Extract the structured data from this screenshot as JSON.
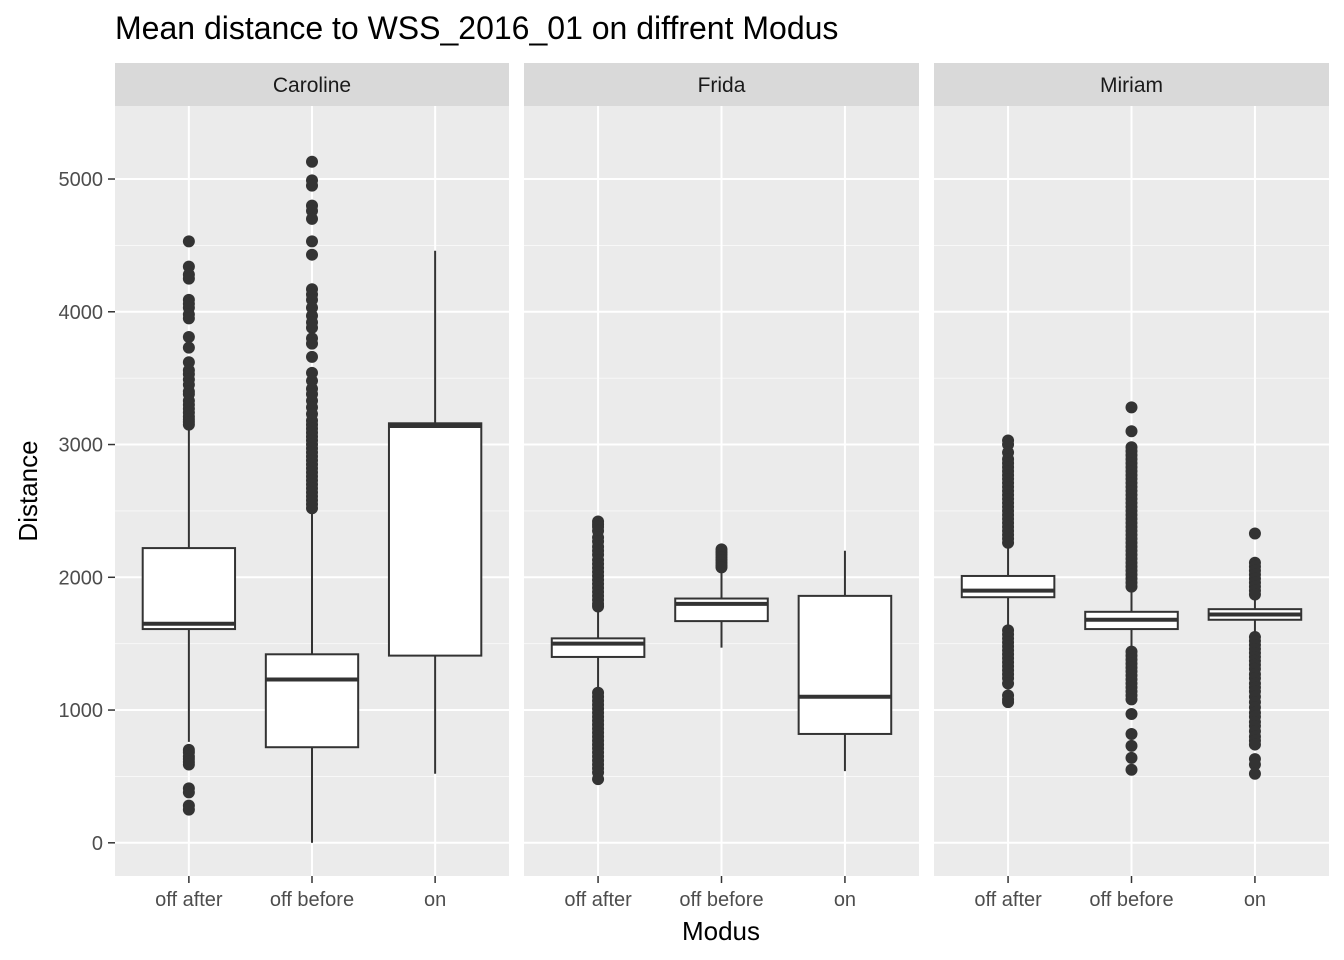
{
  "chart_data": {
    "type": "boxplot",
    "title": "Mean distance to WSS_2016_01 on diffrent Modus",
    "xlabel": "Modus",
    "ylabel": "Distance",
    "ylim": [
      -250,
      5550
    ],
    "yticks": [
      0,
      1000,
      2000,
      3000,
      4000,
      5000
    ],
    "categories": [
      "off after",
      "off before",
      "on"
    ],
    "facets": [
      {
        "name": "Caroline",
        "boxes": [
          {
            "category": "off after",
            "q1": 1610,
            "median": 1650,
            "q3": 2220,
            "whisker_low": 760,
            "whisker_high": 3110,
            "outliers": [
              4530,
              4340,
              4280,
              4250,
              4090,
              4060,
              4030,
              3980,
              3950,
              3810,
              3730,
              3620,
              3560,
              3530,
              3490,
              3450,
              3400,
              3380,
              3330,
              3300,
              3270,
              3240,
              3210,
              3190,
              3170,
              3150,
              700,
              680,
              650,
              630,
              610,
              590,
              410,
              380,
              280,
              250
            ]
          },
          {
            "category": "off before",
            "q1": 720,
            "median": 1230,
            "q3": 1420,
            "whisker_low": 0,
            "whisker_high": 2480,
            "outliers": [
              5130,
              4990,
              4950,
              4800,
              4760,
              4700,
              4530,
              4430,
              4170,
              4130,
              4090,
              4030,
              3970,
              3920,
              3880,
              3800,
              3760,
              3660,
              3540,
              3480,
              3420,
              3380,
              3330,
              3280,
              3230,
              3180,
              3150,
              3120,
              3090,
              3060,
              3030,
              3000,
              2970,
              2940,
              2910,
              2880,
              2850,
              2820,
              2790,
              2760,
              2730,
              2700,
              2670,
              2640,
              2610,
              2580,
              2550,
              2520
            ]
          },
          {
            "category": "on",
            "q1": 1410,
            "median": 3140,
            "q3": 3160,
            "whisker_low": 520,
            "whisker_high": 4460,
            "outliers": []
          }
        ]
      },
      {
        "name": "Frida",
        "boxes": [
          {
            "category": "off after",
            "q1": 1400,
            "median": 1500,
            "q3": 1540,
            "whisker_low": 1150,
            "whisker_high": 1760,
            "outliers": [
              2420,
              2400,
              2380,
              2350,
              2300,
              2270,
              2230,
              2200,
              2170,
              2130,
              2100,
              2070,
              2040,
              2010,
              1980,
              1950,
              1920,
              1890,
              1860,
              1830,
              1800,
              1780,
              1130,
              1100,
              1070,
              1040,
              1010,
              980,
              950,
              920,
              890,
              860,
              830,
              800,
              770,
              740,
              710,
              680,
              650,
              620,
              590,
              560,
              530,
              480
            ]
          },
          {
            "category": "off before",
            "q1": 1670,
            "median": 1800,
            "q3": 1840,
            "whisker_low": 1470,
            "whisker_high": 2060,
            "outliers": [
              2210,
              2190,
              2170,
              2150,
              2130,
              2110,
              2090,
              2075
            ]
          },
          {
            "category": "on",
            "q1": 820,
            "median": 1100,
            "q3": 1860,
            "whisker_low": 540,
            "whisker_high": 2200,
            "outliers": []
          }
        ]
      },
      {
        "name": "Miriam",
        "boxes": [
          {
            "category": "off after",
            "q1": 1850,
            "median": 1900,
            "q3": 2010,
            "whisker_low": 1620,
            "whisker_high": 2240,
            "outliers": [
              3030,
              3000,
              2940,
              2890,
              2860,
              2830,
              2800,
              2770,
              2740,
              2710,
              2680,
              2650,
              2620,
              2590,
              2560,
              2530,
              2500,
              2470,
              2440,
              2410,
              2380,
              2350,
              2320,
              2290,
              2260,
              1600,
              1570,
              1540,
              1510,
              1480,
              1450,
              1420,
              1390,
              1360,
              1330,
              1300,
              1270,
              1240,
              1200,
              1110,
              1080,
              1060
            ]
          },
          {
            "category": "off before",
            "q1": 1610,
            "median": 1680,
            "q3": 1740,
            "whisker_low": 1450,
            "whisker_high": 1900,
            "outliers": [
              3280,
              3100,
              2980,
              2950,
              2920,
              2890,
              2860,
              2830,
              2800,
              2770,
              2740,
              2710,
              2680,
              2650,
              2620,
              2590,
              2560,
              2530,
              2500,
              2470,
              2440,
              2410,
              2380,
              2350,
              2320,
              2290,
              2260,
              2230,
              2200,
              2170,
              2140,
              2110,
              2080,
              2050,
              2020,
              1990,
              1960,
              1930,
              1440,
              1410,
              1380,
              1350,
              1320,
              1290,
              1260,
              1230,
              1200,
              1170,
              1140,
              1110,
              1080,
              970,
              820,
              730,
              640,
              550
            ]
          },
          {
            "category": "on",
            "q1": 1680,
            "median": 1720,
            "q3": 1760,
            "whisker_low": 1560,
            "whisker_high": 1860,
            "outliers": [
              2330,
              2110,
              2080,
              2050,
              2020,
              1990,
              1960,
              1930,
              1900,
              1870,
              1550,
              1520,
              1490,
              1460,
              1430,
              1400,
              1370,
              1340,
              1310,
              1270,
              1240,
              1200,
              1170,
              1140,
              1100,
              1060,
              1020,
              980,
              950,
              910,
              880,
              840,
              800,
              770,
              740,
              630,
              590,
              520
            ]
          }
        ]
      }
    ]
  }
}
